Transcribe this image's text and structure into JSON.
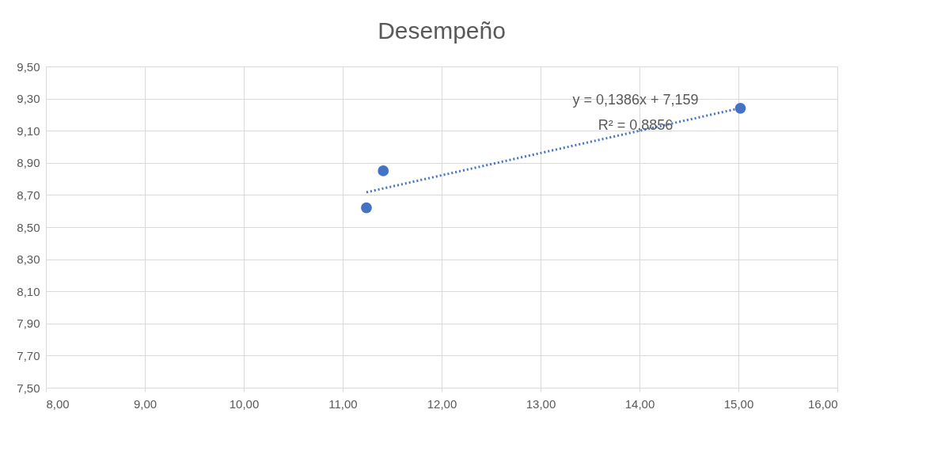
{
  "chart_data": {
    "type": "scatter",
    "title": "Desempeño",
    "series": [
      {
        "color": "#4472c4",
        "marker": "circle",
        "x": [
          11.24,
          11.41,
          15.02
        ],
        "values": [
          8.62,
          8.85,
          9.24
        ]
      },
      {
        "type": "line",
        "color": "#4472c4",
        "line_style": "dotted",
        "marker": "none",
        "x": [
          11.24,
          15.02
        ],
        "values": [
          8.717,
          9.241
        ]
      }
    ],
    "xlim": [
      8,
      16
    ],
    "xticks": [
      {
        "value": 8,
        "label": "8,00"
      },
      {
        "value": 9,
        "label": "9,00"
      },
      {
        "value": 10,
        "label": "10,00"
      },
      {
        "value": 11,
        "label": "11,00"
      },
      {
        "value": 12,
        "label": "12,00"
      },
      {
        "value": 13,
        "label": "13,00"
      },
      {
        "value": 14,
        "label": "14,00"
      },
      {
        "value": 15,
        "label": "15,00"
      },
      {
        "value": 16,
        "label": "16,00"
      }
    ],
    "ylim": [
      7.5,
      9.5
    ],
    "yticks": [
      {
        "value": 7.5,
        "label": "7,50"
      },
      {
        "value": 7.7,
        "label": "7,70"
      },
      {
        "value": 7.9,
        "label": "7,90"
      },
      {
        "value": 8.1,
        "label": "8,10"
      },
      {
        "value": 8.3,
        "label": "8,30"
      },
      {
        "value": 8.5,
        "label": "8,50"
      },
      {
        "value": 8.7,
        "label": "8,70"
      },
      {
        "value": 8.9,
        "label": "8,90"
      },
      {
        "value": 9.1,
        "label": "9,10"
      },
      {
        "value": 9.3,
        "label": "9,30"
      },
      {
        "value": 9.5,
        "label": "9,50"
      }
    ],
    "grid": true,
    "annotations": [
      "y = 0,1386x + 7,159",
      "R² = 0,8856"
    ]
  }
}
